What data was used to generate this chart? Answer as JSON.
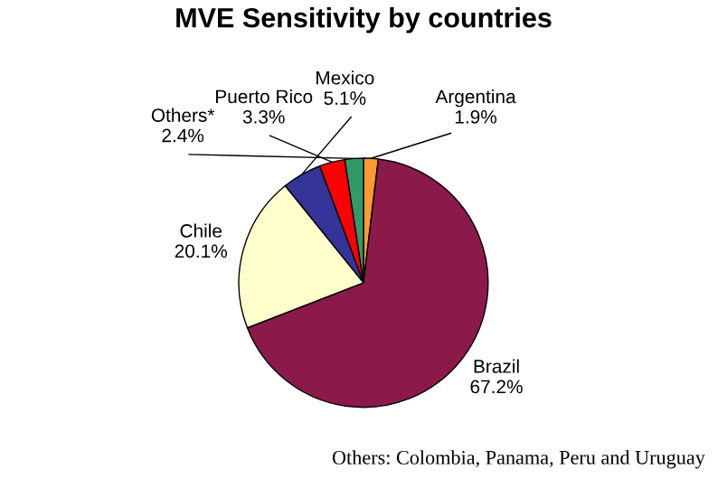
{
  "chart_data": {
    "type": "pie",
    "title": "MVE Sensitivity by countries",
    "categories": [
      "Argentina",
      "Brazil",
      "Chile",
      "Mexico",
      "Puerto Rico",
      "Others*"
    ],
    "values": [
      1.9,
      67.2,
      20.1,
      5.1,
      3.3,
      2.4
    ],
    "value_labels": [
      "1.9%",
      "67.2%",
      "20.1%",
      "5.1%",
      "3.3%",
      "2.4%"
    ],
    "colors": [
      "#ff9933",
      "#8b1a4a",
      "#ffffcc",
      "#333399",
      "#ff0000",
      "#339966"
    ],
    "annotations": [
      "Others: Colombia, Panama, Peru and Uruguay"
    ]
  }
}
